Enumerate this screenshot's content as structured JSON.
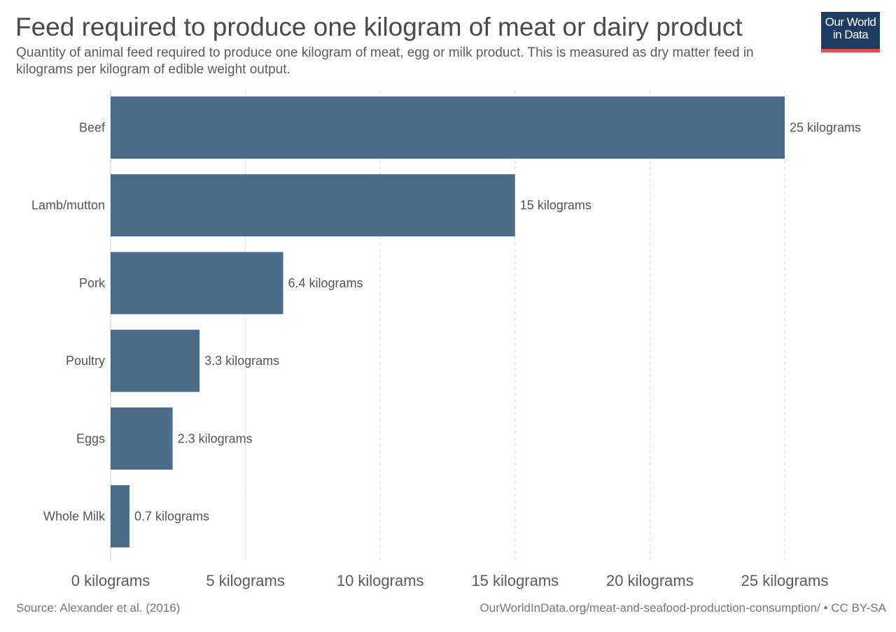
{
  "header": {
    "title": "Feed required to produce one kilogram of meat or dairy product",
    "subtitle": "Quantity of animal feed required to produce one kilogram of meat, egg or milk product. This is measured as dry matter feed in kilograms per kilogram of edible weight output."
  },
  "logo": {
    "line1": "Our World",
    "line2": "in Data",
    "bg_color": "#1d3d63",
    "accent_color": "#e0534a"
  },
  "footer": {
    "source": "Source: Alexander et al. (2016)",
    "attribution": "OurWorldInData.org/meat-and-seafood-production-consumption/ • CC BY-SA"
  },
  "chart_data": {
    "type": "bar",
    "orientation": "horizontal",
    "title": "Feed required to produce one kilogram of meat or dairy product",
    "subtitle": "Quantity of animal feed required to produce one kilogram of meat, egg or milk product. This is measured as dry matter feed in kilograms per kilogram of edible weight output.",
    "categories": [
      "Beef",
      "Lamb/mutton",
      "Pork",
      "Poultry",
      "Eggs",
      "Whole Milk"
    ],
    "values": [
      25,
      15,
      6.4,
      3.3,
      2.3,
      0.7
    ],
    "value_labels": [
      "25 kilograms",
      "15 kilograms",
      "6.4 kilograms",
      "3.3 kilograms",
      "2.3 kilograms",
      "0.7 kilograms"
    ],
    "xlim": [
      0,
      25
    ],
    "x_ticks": [
      0,
      5,
      10,
      15,
      20,
      25
    ],
    "x_tick_labels": [
      "0 kilograms",
      "5 kilograms",
      "10 kilograms",
      "15 kilograms",
      "20 kilograms",
      "25 kilograms"
    ],
    "grid": "vertical dashed",
    "bar_color": "#4c6d8a"
  }
}
